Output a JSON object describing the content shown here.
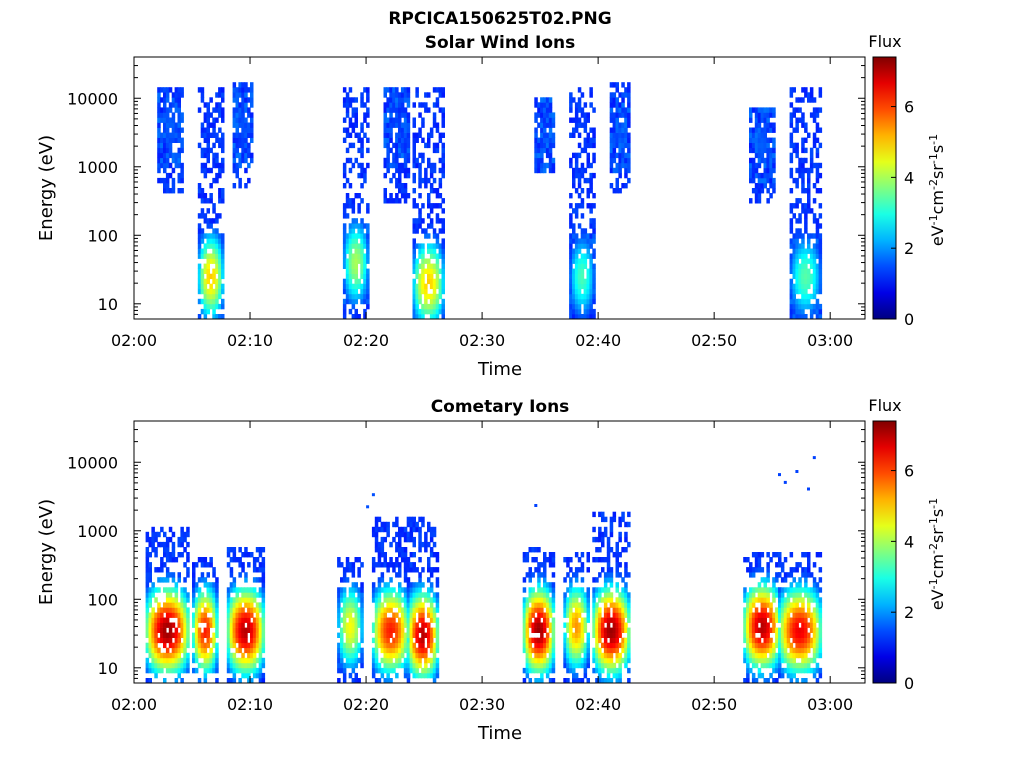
{
  "figure": {
    "title": "RPCICA150625T02.PNG"
  },
  "chart_data": [
    {
      "type": "heatmap",
      "title": "Solar Wind Ions",
      "xlabel": "Time",
      "ylabel": "Energy (eV)",
      "y_scale": "log",
      "x_ticks": [
        "02:00",
        "02:10",
        "02:20",
        "02:30",
        "02:40",
        "02:50",
        "03:00"
      ],
      "y_ticks": [
        "10",
        "100",
        "1000",
        "10000"
      ],
      "xlim": [
        "02:00",
        "03:03"
      ],
      "ylim": [
        6,
        40000
      ],
      "colorbar": {
        "title": "Flux",
        "label": "eV-1cm-2sr-1s-1",
        "range": [
          0,
          7.4
        ],
        "ticks": [
          "0",
          "2",
          "4",
          "6"
        ],
        "colormap": "jet"
      },
      "bursts": [
        {
          "start": "02:02",
          "end": "02:04",
          "emin": 400,
          "emax": 14000,
          "peak_energy": 4000,
          "peak_flux": 1.6
        },
        {
          "start": "02:05.5",
          "end": "02:07.5",
          "emin": 6,
          "emax": 14000,
          "peak_energy": 25,
          "peak_flux": 5.0
        },
        {
          "start": "02:08.5",
          "end": "02:10",
          "emin": 500,
          "emax": 16000,
          "peak_energy": 4000,
          "peak_flux": 1.5
        },
        {
          "start": "02:18",
          "end": "02:20",
          "emin": 6,
          "emax": 15000,
          "peak_energy": 40,
          "peak_flux": 4.0
        },
        {
          "start": "02:21.5",
          "end": "02:23.5",
          "emin": 300,
          "emax": 14000,
          "peak_energy": 4000,
          "peak_flux": 1.4
        },
        {
          "start": "02:24",
          "end": "02:26.5",
          "emin": 6,
          "emax": 15000,
          "peak_energy": 20,
          "peak_flux": 5.0
        },
        {
          "start": "02:34.5",
          "end": "02:36",
          "emin": 700,
          "emax": 10000,
          "peak_energy": 3000,
          "peak_flux": 1.4
        },
        {
          "start": "02:37.5",
          "end": "02:39.5",
          "emin": 6,
          "emax": 15000,
          "peak_energy": 25,
          "peak_flux": 3.3
        },
        {
          "start": "02:41",
          "end": "02:42.5",
          "emin": 400,
          "emax": 16000,
          "peak_energy": 3000,
          "peak_flux": 1.5
        },
        {
          "start": "02:53",
          "end": "02:55",
          "emin": 300,
          "emax": 8000,
          "peak_energy": 2000,
          "peak_flux": 1.6
        },
        {
          "start": "02:56.5",
          "end": "02:59",
          "emin": 6,
          "emax": 14000,
          "peak_energy": 25,
          "peak_flux": 3.4
        }
      ]
    },
    {
      "type": "heatmap",
      "title": "Cometary Ions",
      "xlabel": "Time",
      "ylabel": "Energy (eV)",
      "y_scale": "log",
      "x_ticks": [
        "02:00",
        "02:10",
        "02:20",
        "02:30",
        "02:40",
        "02:50",
        "03:00"
      ],
      "y_ticks": [
        "10",
        "100",
        "1000",
        "10000"
      ],
      "xlim": [
        "02:00",
        "03:03"
      ],
      "ylim": [
        6,
        40000
      ],
      "colorbar": {
        "title": "Flux",
        "label": "eV-1cm-2sr-1s-1",
        "range": [
          0,
          7.4
        ],
        "ticks": [
          "0",
          "2",
          "4",
          "6"
        ],
        "colormap": "jet"
      },
      "bursts": [
        {
          "start": "02:01",
          "end": "02:04.5",
          "emin": 6,
          "emax": 1200,
          "peak_energy": 35,
          "peak_flux": 7.2
        },
        {
          "start": "02:05",
          "end": "02:07",
          "emin": 6,
          "emax": 400,
          "peak_energy": 35,
          "peak_flux": 6.3
        },
        {
          "start": "02:08",
          "end": "02:11",
          "emin": 6,
          "emax": 600,
          "peak_energy": 35,
          "peak_flux": 7.0
        },
        {
          "start": "02:17.5",
          "end": "02:19.5",
          "emin": 6,
          "emax": 500,
          "peak_energy": 40,
          "peak_flux": 4.6
        },
        {
          "start": "02:20.5",
          "end": "02:23.5",
          "emin": 6,
          "emax": 1500,
          "peak_energy": 35,
          "peak_flux": 6.3
        },
        {
          "start": "02:23.5",
          "end": "02:26",
          "emin": 6,
          "emax": 1500,
          "peak_energy": 30,
          "peak_flux": 7.0
        },
        {
          "start": "02:33.5",
          "end": "02:36",
          "emin": 6,
          "emax": 600,
          "peak_energy": 35,
          "peak_flux": 7.2
        },
        {
          "start": "02:37",
          "end": "02:39",
          "emin": 6,
          "emax": 500,
          "peak_energy": 40,
          "peak_flux": 5.4
        },
        {
          "start": "02:39.5",
          "end": "02:42.5",
          "emin": 6,
          "emax": 1800,
          "peak_energy": 35,
          "peak_flux": 7.2
        },
        {
          "start": "02:52.5",
          "end": "02:55.5",
          "emin": 6,
          "emax": 500,
          "peak_energy": 40,
          "peak_flux": 7.0
        },
        {
          "start": "02:55.5",
          "end": "02:59",
          "emin": 6,
          "emax": 500,
          "peak_energy": 35,
          "peak_flux": 6.6
        }
      ],
      "scatter_points": [
        {
          "time": "02:20",
          "energy": 2200,
          "flux": 1.5
        },
        {
          "time": "02:20.5",
          "energy": 3300,
          "flux": 1.5
        },
        {
          "time": "02:34.5",
          "energy": 2300,
          "flux": 1.4
        },
        {
          "time": "02:55.5",
          "energy": 6500,
          "flux": 1.4
        },
        {
          "time": "02:56",
          "energy": 5000,
          "flux": 1.4
        },
        {
          "time": "02:57",
          "energy": 7200,
          "flux": 1.4
        },
        {
          "time": "02:58",
          "energy": 4000,
          "flux": 1.4
        },
        {
          "time": "02:58.5",
          "energy": 11500,
          "flux": 1.4
        }
      ]
    }
  ]
}
